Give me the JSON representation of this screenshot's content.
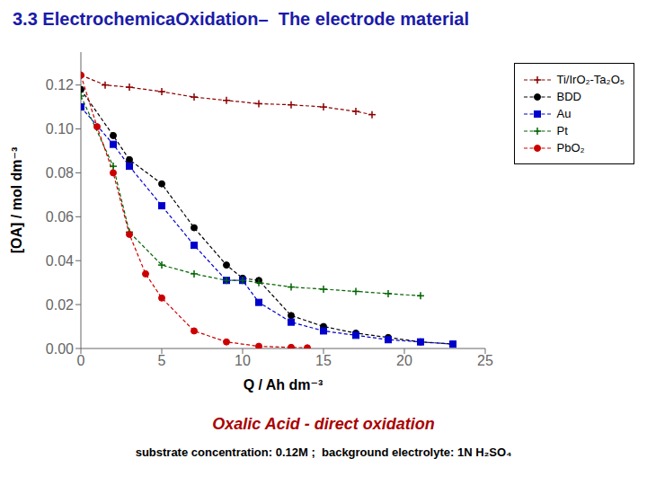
{
  "chart_data": {
    "type": "line",
    "title": "3.3 ElectrochemicaOxidation–  The electrode material",
    "subtitle": "Oxalic Acid - direct oxidation",
    "annotations": [
      "substrate concentration: 0.12M ;  background electrolyte: 1N H₂SO₄"
    ],
    "x_label": "Q / Ah dm⁻³",
    "y_label": "[OA] / mol dm⁻³",
    "xlim": [
      0,
      25
    ],
    "ylim": [
      0,
      0.135
    ],
    "xticks": [
      0,
      5,
      10,
      15,
      20,
      25
    ],
    "yticks": [
      {
        "value": 0,
        "label": "0.00"
      },
      {
        "value": 0.02,
        "label": "0.02"
      },
      {
        "value": 0.04,
        "label": "0.04"
      },
      {
        "value": 0.06,
        "label": "0.06"
      },
      {
        "value": 0.08,
        "label": "0.08"
      },
      {
        "value": 0.1,
        "label": "0.10"
      },
      {
        "value": 0.12,
        "label": "0.12"
      }
    ],
    "grid": false,
    "legend": "upper right",
    "series": [
      {
        "name": "Ti/IrO₂-Ta₂O₅",
        "color": "#8B0000",
        "marker": "plus",
        "line_style": "dashed",
        "x": [
          0,
          1.5,
          3,
          5,
          7,
          9,
          11,
          13,
          15,
          17,
          18
        ],
        "values": [
          0.1245,
          0.12,
          0.119,
          0.117,
          0.1145,
          0.113,
          0.1115,
          0.111,
          0.11,
          0.108,
          0.1065
        ]
      },
      {
        "name": "BDD",
        "color": "#000000",
        "marker": "circle",
        "line_style": "dashed",
        "x": [
          0,
          2,
          3,
          5,
          7,
          9,
          10,
          11,
          13,
          15,
          17,
          19,
          21,
          23
        ],
        "values": [
          0.118,
          0.097,
          0.086,
          0.075,
          0.055,
          0.038,
          0.032,
          0.031,
          0.015,
          0.01,
          0.007,
          0.005,
          0.003,
          0.002
        ]
      },
      {
        "name": "Au",
        "color": "#0000CC",
        "marker": "square",
        "line_style": "dashed",
        "x": [
          0,
          2,
          3,
          5,
          7,
          9,
          10,
          11,
          13,
          15,
          17,
          19,
          21,
          23
        ],
        "values": [
          0.11,
          0.093,
          0.083,
          0.065,
          0.047,
          0.031,
          0.031,
          0.021,
          0.012,
          0.008,
          0.006,
          0.004,
          0.003,
          0.002
        ]
      },
      {
        "name": "Pt",
        "color": "#006400",
        "marker": "plus",
        "line_style": "dashed",
        "x": [
          0,
          2,
          3,
          5,
          7,
          9,
          10,
          11,
          13,
          15,
          17,
          19,
          21
        ],
        "values": [
          0.115,
          0.083,
          0.053,
          0.038,
          0.034,
          0.031,
          0.031,
          0.03,
          0.028,
          0.027,
          0.026,
          0.025,
          0.024
        ]
      },
      {
        "name": "PbO₂",
        "color": "#CC0000",
        "marker": "circle",
        "line_style": "dashed",
        "x": [
          0,
          1,
          2,
          3,
          4,
          5,
          7,
          9,
          11,
          13,
          14
        ],
        "values": [
          0.1245,
          0.101,
          0.08,
          0.052,
          0.034,
          0.023,
          0.008,
          0.003,
          0.001,
          0.0005,
          0.0003
        ]
      }
    ]
  }
}
